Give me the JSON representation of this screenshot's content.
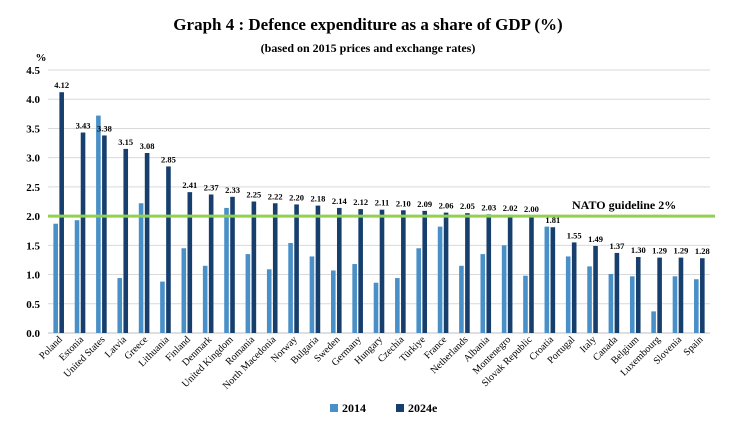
{
  "chart_data": {
    "type": "bar",
    "title": "Graph 4 : Defence expenditure as a share of GDP (%)",
    "subtitle": "(based on 2015 prices and exchange rates)",
    "ylabel": "%",
    "ylim": [
      0,
      4.5
    ],
    "yticks": [
      "0.0",
      "0.5",
      "1.0",
      "1.5",
      "2.0",
      "2.5",
      "3.0",
      "3.5",
      "4.0",
      "4.5"
    ],
    "grid": true,
    "legend_position": "bottom",
    "reference_line": {
      "label": "NATO guideline 2%",
      "value": 2.0,
      "color": "#92d050"
    },
    "categories": [
      "Poland",
      "Estonia",
      "United States",
      "Latvia",
      "Greece",
      "Lithuania",
      "Finland",
      "Denmark",
      "United Kingdom",
      "Romania",
      "North Macedonia",
      "Norway",
      "Bulgaria",
      "Sweden",
      "Germany",
      "Hungary",
      "Czechia",
      "Türkiye",
      "France",
      "Netherlands",
      "Albania",
      "Montenegro",
      "Slovak Republic",
      "Croatia",
      "Portugal",
      "Italy",
      "Canada",
      "Belgium",
      "Luxembourg",
      "Slovenia",
      "Spain"
    ],
    "series": [
      {
        "name": "2014",
        "color": "#4a90c8",
        "values": [
          1.87,
          1.93,
          3.72,
          0.94,
          2.22,
          0.88,
          1.45,
          1.15,
          2.14,
          1.35,
          1.09,
          1.54,
          1.31,
          1.07,
          1.18,
          0.86,
          0.94,
          1.45,
          1.82,
          1.15,
          1.35,
          1.5,
          0.98,
          1.82,
          1.31,
          1.14,
          1.01,
          0.97,
          0.37,
          0.97,
          0.92
        ]
      },
      {
        "name": "2024e",
        "color": "#173f6e",
        "values": [
          4.12,
          3.43,
          3.38,
          3.15,
          3.08,
          2.85,
          2.41,
          2.37,
          2.33,
          2.25,
          2.22,
          2.2,
          2.18,
          2.14,
          2.12,
          2.11,
          2.1,
          2.09,
          2.06,
          2.05,
          2.03,
          2.02,
          2.0,
          1.81,
          1.55,
          1.49,
          1.37,
          1.3,
          1.29,
          1.29,
          1.28
        ],
        "labels": [
          "4.12",
          "3.43",
          "3.38",
          "3.15",
          "3.08",
          "2.85",
          "2.41",
          "2.37",
          "2.33",
          "2.25",
          "2.22",
          "2.20",
          "2.18",
          "2.14",
          "2.12",
          "2.11",
          "2.10",
          "2.09",
          "2.06",
          "2.05",
          "2.03",
          "2.02",
          "2.00",
          "1.81",
          "1.55",
          "1.49",
          "1.37",
          "1.30",
          "1.29",
          "1.29",
          "1.28"
        ]
      }
    ]
  }
}
